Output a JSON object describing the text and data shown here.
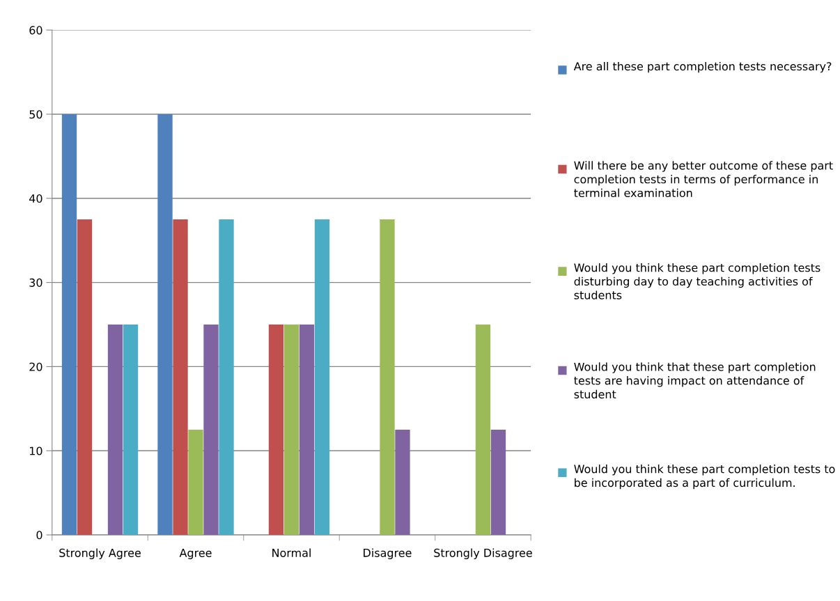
{
  "chart_data": {
    "type": "bar",
    "categories": [
      "Strongly Agree",
      "Agree",
      "Normal",
      "Disagree",
      "Strongly Disagree"
    ],
    "series": [
      {
        "name": "Are all these part completion tests necessary?",
        "color": "#4f81bd",
        "values": [
          50,
          50,
          0,
          0,
          0
        ]
      },
      {
        "name": "Will there be any better outcome of these part completion tests in terms of performance in terminal examination",
        "color": "#c0504d",
        "values": [
          37.5,
          37.5,
          25,
          0,
          0
        ]
      },
      {
        "name": "Would you think these part completion tests disturbing day to day teaching activities of students",
        "color": "#9bbb59",
        "values": [
          0,
          12.5,
          25,
          37.5,
          25
        ]
      },
      {
        "name": "Would you think that these part completion tests are having impact on attendance of student",
        "color": "#8064a2",
        "values": [
          25,
          25,
          25,
          12.5,
          12.5
        ]
      },
      {
        "name": "Would you think these part completion tests to be incorporated as a part of curriculum.",
        "color": "#4bacc6",
        "values": [
          25,
          37.5,
          37.5,
          0,
          0
        ]
      }
    ],
    "ylim": [
      0,
      60
    ],
    "yticks": [
      0,
      10,
      20,
      30,
      40,
      50,
      60
    ],
    "grid": "y",
    "legend": "right"
  }
}
